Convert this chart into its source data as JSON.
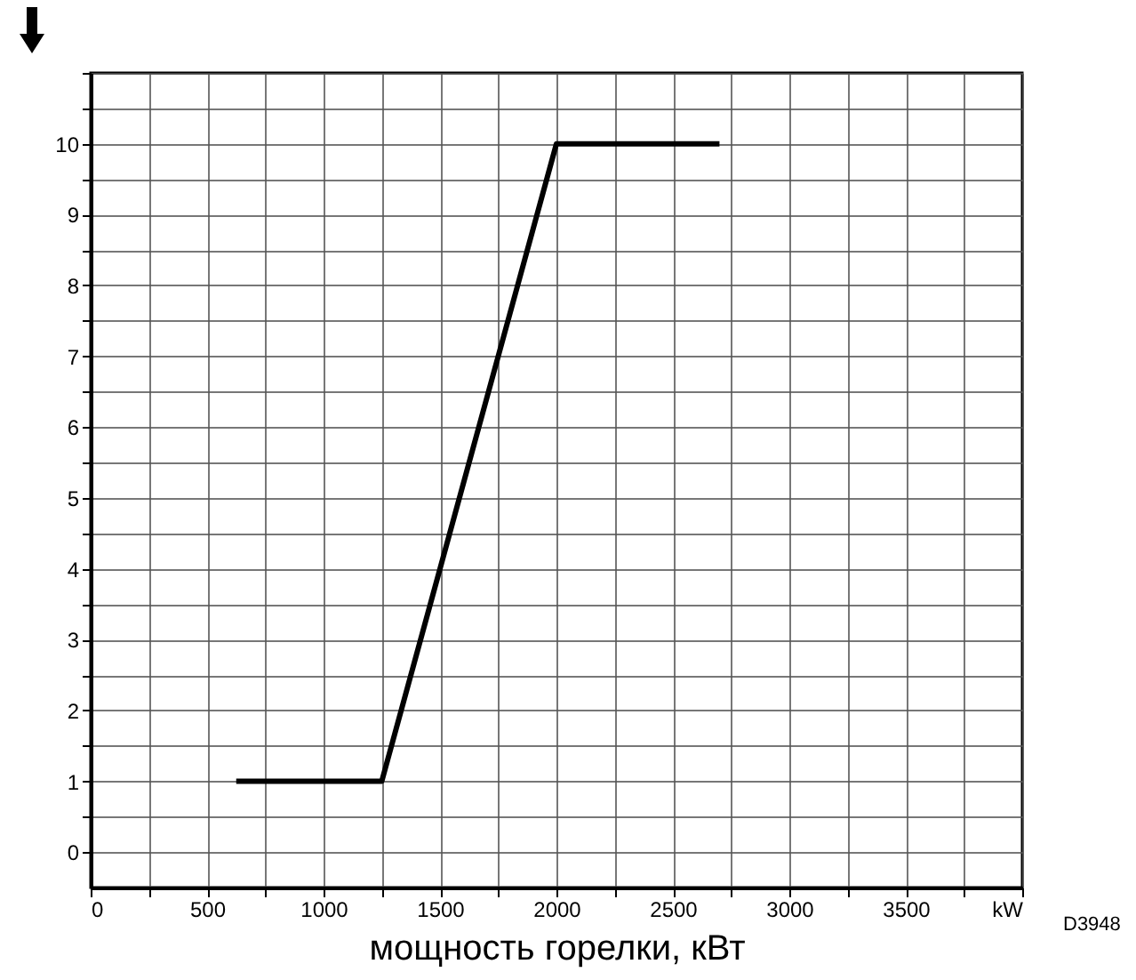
{
  "chart_data": {
    "type": "line",
    "xlabel": "мощность горелки, кВт",
    "x": [
      625,
      1250,
      2000,
      2700
    ],
    "series": [
      {
        "color": "#000000",
        "values": [
          1,
          1,
          10,
          10
        ]
      }
    ],
    "xlim": [
      0,
      4000
    ],
    "xticks": [
      0,
      {
        "value": 250,
        "label": null
      },
      500,
      {
        "value": 750,
        "label": null
      },
      1000,
      {
        "value": 1250,
        "label": null
      },
      1500,
      {
        "value": 1750,
        "label": null
      },
      2000,
      {
        "value": 2250,
        "label": null
      },
      2500,
      {
        "value": 2750,
        "label": null
      },
      3000,
      {
        "value": 3250,
        "label": null
      },
      3500,
      {
        "value": 3750,
        "label": null
      },
      {
        "value": 4000,
        "label": "kW"
      }
    ],
    "ylim": [
      -0.5,
      11
    ],
    "yticks": [
      0,
      {
        "value": 0.5,
        "label": null
      },
      1,
      {
        "value": 1.5,
        "label": null
      },
      2,
      {
        "value": 2.5,
        "label": null
      },
      3,
      {
        "value": 3.5,
        "label": null
      },
      4,
      {
        "value": 4.5,
        "label": null
      },
      5,
      {
        "value": 5.5,
        "label": null
      },
      6,
      {
        "value": 6.5,
        "label": null
      },
      7,
      {
        "value": 7.5,
        "label": null
      },
      8,
      {
        "value": 8.5,
        "label": null
      },
      9,
      {
        "value": 9.5,
        "label": null
      },
      10,
      {
        "value": 10.5,
        "label": null
      },
      {
        "value": 11,
        "label": null
      }
    ],
    "grid": true,
    "marker": "none",
    "line_style": "solid",
    "legend": false,
    "annotations": [
      "D3948"
    ]
  }
}
